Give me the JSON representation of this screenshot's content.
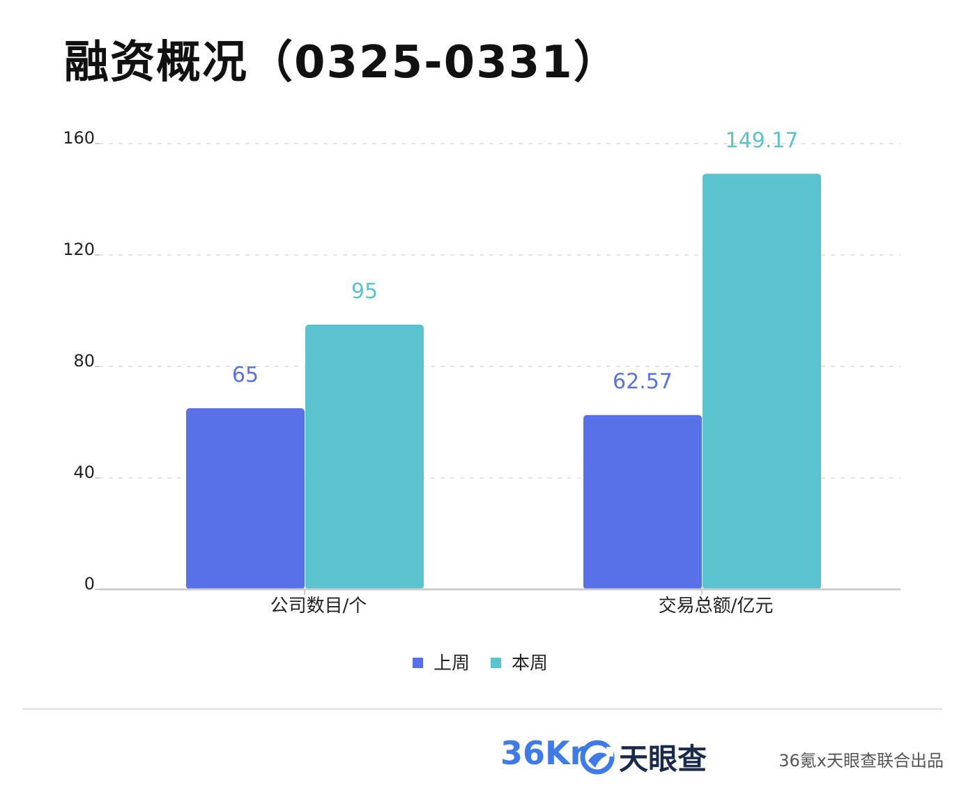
{
  "title": "融资概况（0325-0331）",
  "chart_data": {
    "type": "bar",
    "categories": [
      "公司数目/个",
      "交易总额/亿元"
    ],
    "series": [
      {
        "name": "上周",
        "values": [
          65,
          62.57
        ],
        "labels": [
          "65",
          "62.57"
        ],
        "color": "#5870e8"
      },
      {
        "name": "本周",
        "values": [
          95,
          149.17
        ],
        "labels": [
          "95",
          "149.17"
        ],
        "color": "#5bc3cf"
      }
    ],
    "yticks": [
      "0",
      "40",
      "80",
      "120",
      "160"
    ],
    "ylim": [
      0,
      160
    ],
    "grid": true,
    "legend_position": "bottom-center"
  },
  "footer": {
    "logo_36kr": "36Kr",
    "logo_tianyancha": "天眼查",
    "credit": "36氪x天眼查联合出品"
  },
  "colors": {
    "axis": "#cccccc",
    "grid": "#e4e4e4",
    "tick_text": "#222222",
    "logo_blue": "#3e7be9"
  }
}
